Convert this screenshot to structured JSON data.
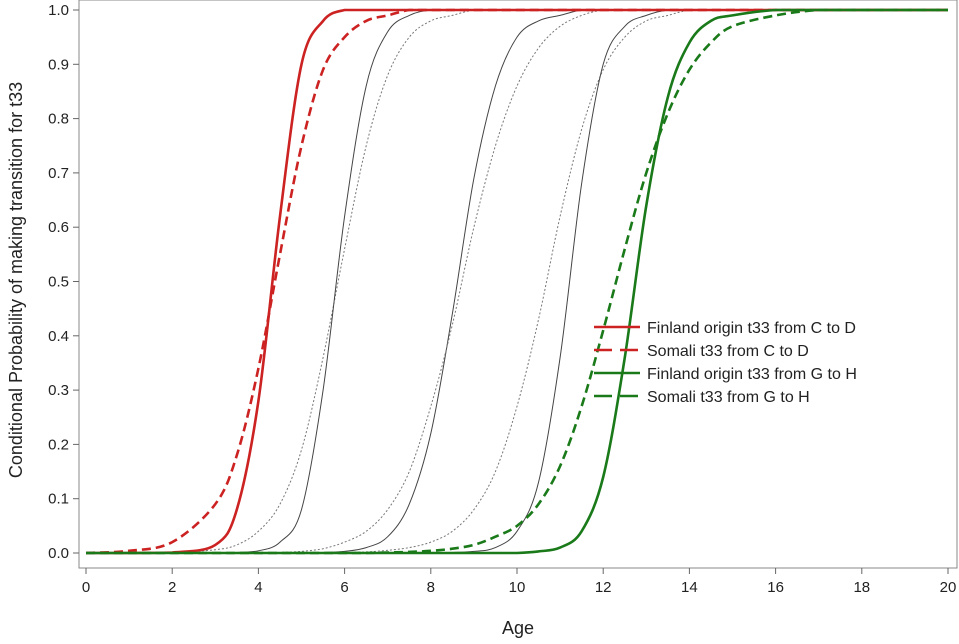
{
  "chart_data": {
    "type": "line",
    "title": "",
    "xlabel": "Age",
    "ylabel": "Conditional Probability of making transition for t33",
    "xlim": [
      0,
      20
    ],
    "ylim": [
      0,
      1.0
    ],
    "xticks": [
      "0",
      "2",
      "4",
      "6",
      "8",
      "10",
      "12",
      "14",
      "16",
      "18",
      "20"
    ],
    "yticks": [
      "0.0",
      "0.1",
      "0.2",
      "0.3",
      "0.4",
      "0.5",
      "0.6",
      "0.7",
      "0.8",
      "0.9",
      "1.0"
    ],
    "legend_position": "center-right",
    "x": [
      0,
      1,
      2,
      3,
      3.5,
      4,
      4.5,
      5,
      5.5,
      6,
      6.5,
      7,
      7.5,
      8,
      8.5,
      9,
      9.5,
      10,
      10.5,
      11,
      11.5,
      12,
      12.5,
      13,
      13.5,
      14,
      14.5,
      15,
      16,
      17,
      18,
      19,
      20
    ],
    "series": [
      {
        "name": "Finland origin t33 from C to D",
        "color": "#cc2222",
        "dash": "solid",
        "in_legend": true,
        "values": [
          0.0,
          0.0,
          0.001,
          0.015,
          0.08,
          0.28,
          0.62,
          0.9,
          0.98,
          1.0,
          1.0,
          1.0,
          1.0,
          1.0,
          1.0,
          1.0,
          1.0,
          1.0,
          1.0,
          1.0,
          1.0,
          1.0,
          1.0,
          1.0,
          1.0,
          1.0,
          1.0,
          1.0,
          1.0,
          1.0,
          1.0,
          1.0,
          1.0
        ]
      },
      {
        "name": "Somali t33 from C to D",
        "color": "#cc2222",
        "dash": "dashed",
        "in_legend": true,
        "values": [
          0.0,
          0.004,
          0.02,
          0.09,
          0.18,
          0.34,
          0.55,
          0.75,
          0.89,
          0.95,
          0.98,
          0.99,
          1.0,
          1.0,
          1.0,
          1.0,
          1.0,
          1.0,
          1.0,
          1.0,
          1.0,
          1.0,
          1.0,
          1.0,
          1.0,
          1.0,
          1.0,
          1.0,
          1.0,
          1.0,
          1.0,
          1.0,
          1.0
        ]
      },
      {
        "name": "Finland origin t33 from G to H",
        "color": "#1a7a1a",
        "dash": "solid",
        "in_legend": true,
        "values": [
          0.0,
          0.0,
          0.0,
          0.0,
          0.0,
          0.0,
          0.0,
          0.0,
          0.0,
          0.0,
          0.0,
          0.0,
          0.0,
          0.0,
          0.0,
          0.0,
          0.0,
          0.0,
          0.003,
          0.01,
          0.04,
          0.14,
          0.36,
          0.64,
          0.84,
          0.94,
          0.98,
          0.99,
          1.0,
          1.0,
          1.0,
          1.0,
          1.0
        ]
      },
      {
        "name": "Somali t33 from G to H",
        "color": "#1a7a1a",
        "dash": "dashed",
        "in_legend": true,
        "values": [
          0.0,
          0.0,
          0.0,
          0.0,
          0.0,
          0.0,
          0.0,
          0.0,
          0.0,
          0.0,
          0.0,
          0.001,
          0.002,
          0.004,
          0.008,
          0.015,
          0.03,
          0.05,
          0.09,
          0.16,
          0.27,
          0.41,
          0.56,
          0.7,
          0.81,
          0.89,
          0.94,
          0.97,
          0.99,
          1.0,
          1.0,
          1.0,
          1.0
        ]
      },
      {
        "name": "",
        "color": "#777777",
        "dash": "dotted",
        "in_legend": false,
        "values": [
          0.0,
          0.0,
          0.001,
          0.006,
          0.015,
          0.04,
          0.09,
          0.19,
          0.36,
          0.56,
          0.75,
          0.88,
          0.95,
          0.98,
          0.99,
          1.0,
          1.0,
          1.0,
          1.0,
          1.0,
          1.0,
          1.0,
          1.0,
          1.0,
          1.0,
          1.0,
          1.0,
          1.0,
          1.0,
          1.0,
          1.0,
          1.0,
          1.0
        ]
      },
      {
        "name": "",
        "color": "#444444",
        "dash": "solid-thin",
        "in_legend": false,
        "values": [
          0.0,
          0.0,
          0.0,
          0.0,
          0.001,
          0.004,
          0.02,
          0.08,
          0.3,
          0.62,
          0.86,
          0.96,
          0.99,
          1.0,
          1.0,
          1.0,
          1.0,
          1.0,
          1.0,
          1.0,
          1.0,
          1.0,
          1.0,
          1.0,
          1.0,
          1.0,
          1.0,
          1.0,
          1.0,
          1.0,
          1.0,
          1.0,
          1.0
        ]
      },
      {
        "name": "",
        "color": "#444444",
        "dash": "solid-thin",
        "in_legend": false,
        "values": [
          0.0,
          0.0,
          0.0,
          0.0,
          0.0,
          0.0,
          0.0,
          0.0,
          0.001,
          0.003,
          0.01,
          0.03,
          0.09,
          0.22,
          0.44,
          0.69,
          0.86,
          0.95,
          0.98,
          0.99,
          1.0,
          1.0,
          1.0,
          1.0,
          1.0,
          1.0,
          1.0,
          1.0,
          1.0,
          1.0,
          1.0,
          1.0,
          1.0
        ]
      },
      {
        "name": "",
        "color": "#777777",
        "dash": "dotted",
        "in_legend": false,
        "values": [
          0.0,
          0.0,
          0.0,
          0.0,
          0.0,
          0.0,
          0.001,
          0.003,
          0.008,
          0.02,
          0.04,
          0.08,
          0.15,
          0.27,
          0.42,
          0.6,
          0.75,
          0.86,
          0.93,
          0.97,
          0.99,
          1.0,
          1.0,
          1.0,
          1.0,
          1.0,
          1.0,
          1.0,
          1.0,
          1.0,
          1.0,
          1.0,
          1.0
        ]
      },
      {
        "name": "",
        "color": "#777777",
        "dash": "dotted",
        "in_legend": false,
        "values": [
          0.0,
          0.0,
          0.0,
          0.0,
          0.0,
          0.0,
          0.0,
          0.0,
          0.0,
          0.001,
          0.002,
          0.005,
          0.01,
          0.02,
          0.04,
          0.08,
          0.15,
          0.27,
          0.43,
          0.62,
          0.78,
          0.89,
          0.95,
          0.98,
          0.99,
          1.0,
          1.0,
          1.0,
          1.0,
          1.0,
          1.0,
          1.0,
          1.0
        ]
      },
      {
        "name": "",
        "color": "#444444",
        "dash": "solid-thin",
        "in_legend": false,
        "values": [
          0.0,
          0.0,
          0.0,
          0.0,
          0.0,
          0.0,
          0.0,
          0.0,
          0.0,
          0.0,
          0.0,
          0.0,
          0.0,
          0.0,
          0.001,
          0.003,
          0.01,
          0.04,
          0.13,
          0.36,
          0.68,
          0.9,
          0.97,
          0.99,
          1.0,
          1.0,
          1.0,
          1.0,
          1.0,
          1.0,
          1.0,
          1.0,
          1.0
        ]
      }
    ]
  }
}
